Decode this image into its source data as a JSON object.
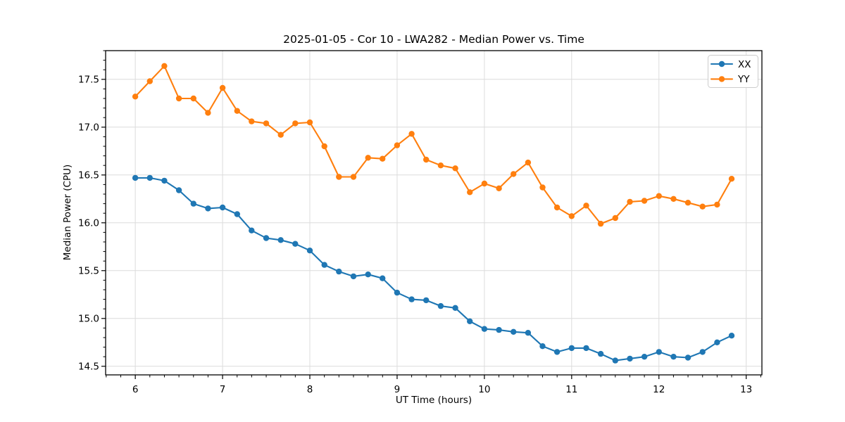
{
  "title": "2025-01-05 - Cor 10 - LWA282 - Median Power vs. Time",
  "chart_data": {
    "type": "line",
    "title": "2025-01-05 - Cor 10 - LWA282 - Median Power vs. Time",
    "xlabel": "UT Time (hours)",
    "ylabel": "Median Power (CPU)",
    "xlim": [
      5.66,
      13.18
    ],
    "ylim": [
      14.41,
      17.8
    ],
    "xticks": [
      6,
      7,
      8,
      9,
      10,
      11,
      12,
      13
    ],
    "yticks": [
      14.5,
      15.0,
      15.5,
      16.0,
      16.5,
      17.0,
      17.5
    ],
    "minor_x_step": 0.16667,
    "minor_y_step": 0.1,
    "grid": true,
    "grid_color": "#dcdcdc",
    "axis_color": "#000000",
    "background": "#ffffff",
    "legend_position": "top-right",
    "x": [
      6.0,
      6.167,
      6.333,
      6.5,
      6.667,
      6.833,
      7.0,
      7.167,
      7.333,
      7.5,
      7.667,
      7.833,
      8.0,
      8.167,
      8.333,
      8.5,
      8.667,
      8.833,
      9.0,
      9.167,
      9.333,
      9.5,
      9.667,
      9.833,
      10.0,
      10.167,
      10.333,
      10.5,
      10.667,
      10.833,
      11.0,
      11.167,
      11.333,
      11.5,
      11.667,
      11.833,
      12.0,
      12.167,
      12.333,
      12.5,
      12.667,
      12.833
    ],
    "series": [
      {
        "name": "XX",
        "color": "#1f77b4",
        "values": [
          16.47,
          16.47,
          16.44,
          16.34,
          16.2,
          16.15,
          16.16,
          16.09,
          15.92,
          15.84,
          15.82,
          15.78,
          15.71,
          15.56,
          15.49,
          15.44,
          15.46,
          15.42,
          15.27,
          15.2,
          15.19,
          15.13,
          15.11,
          14.97,
          14.89,
          14.88,
          14.86,
          14.85,
          14.71,
          14.65,
          14.69,
          14.69,
          14.63,
          14.56,
          14.58,
          14.6,
          14.65,
          14.6,
          14.59,
          14.65,
          14.75,
          14.82
        ]
      },
      {
        "name": "YY",
        "color": "#ff7f0e",
        "values": [
          17.32,
          17.48,
          17.64,
          17.3,
          17.3,
          17.15,
          17.41,
          17.17,
          17.06,
          17.04,
          16.92,
          17.04,
          17.05,
          16.8,
          16.48,
          16.48,
          16.68,
          16.67,
          16.81,
          16.93,
          16.66,
          16.6,
          16.57,
          16.32,
          16.41,
          16.36,
          16.51,
          16.63,
          16.37,
          16.16,
          16.07,
          16.18,
          15.99,
          16.05,
          16.22,
          16.23,
          16.28,
          16.25,
          16.21,
          16.17,
          16.19,
          16.46
        ]
      }
    ]
  }
}
